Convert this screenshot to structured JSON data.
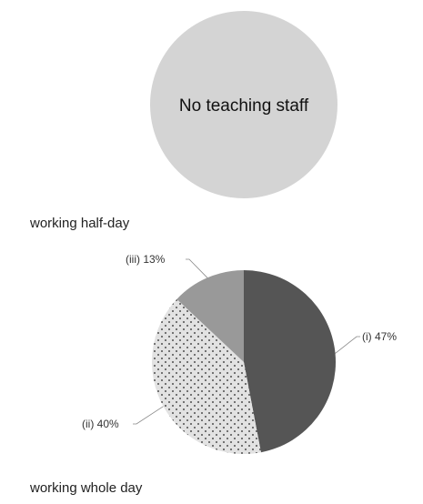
{
  "chart_data": [
    {
      "type": "pie",
      "center_label": "No teaching staff",
      "categories": [],
      "values": []
    },
    {
      "type": "pie",
      "caption": "working half-day",
      "categories": [
        "(i)",
        "(ii)",
        "(iii)"
      ],
      "values": [
        47,
        40,
        13
      ],
      "data_labels": [
        "(i) 47%",
        "(ii) 40%",
        "(iii) 13%"
      ],
      "fills": [
        "dark-solid",
        "dotted",
        "medium-solid"
      ]
    }
  ],
  "captions": {
    "half_day": "working half-day",
    "whole_day": "working whole day"
  },
  "colors": {
    "empty_pie": "#d4d4d4",
    "slice_dark": "#555555",
    "slice_medium": "#999999",
    "slice_dotted_bg": "#e2e2e2",
    "dot": "#222222",
    "leader": "#888888"
  }
}
